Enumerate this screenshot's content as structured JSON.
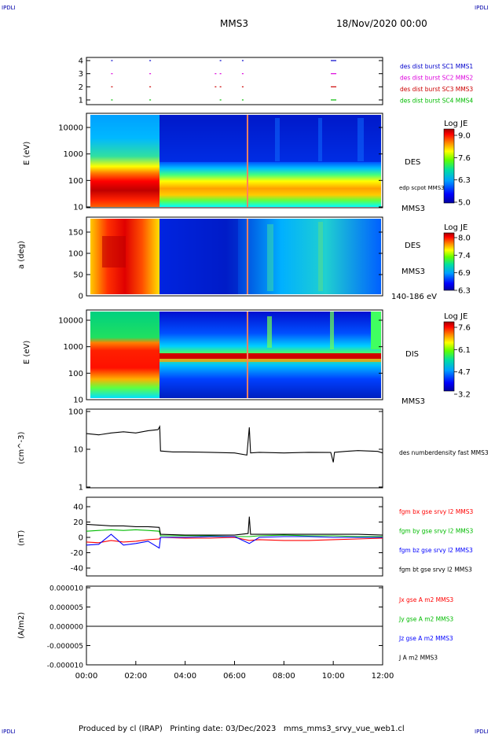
{
  "corner_labels": {
    "top_left": "IPDLI",
    "top_right": "IPDLI",
    "bottom_left": "IPDLI",
    "bottom_right": "IPDLI"
  },
  "header": {
    "spacecraft": "MMS3",
    "datetime": "18/Nov/2020 00:00"
  },
  "footer": {
    "text": "Produced by cl (IRAP)   Printing date: 03/Dec/2023   mms_mms3_srvy_vue_web1.cl"
  },
  "x_axis": {
    "ticks": [
      "00:00",
      "02:00",
      "04:00",
      "06:00",
      "08:00",
      "10:00",
      "12:00"
    ]
  },
  "chart_data": [
    {
      "type": "scatter",
      "panel": "burst-availability",
      "y_ticks": [
        "4",
        "3",
        "2",
        "1"
      ],
      "series": [
        {
          "name": "des dist burst SC1 MMS1",
          "color": "#0000cc",
          "level": 4,
          "marks_hours": [
            1.0,
            2.55,
            5.4,
            6.3,
            9.9
          ]
        },
        {
          "name": "des dist burst SC2 MMS2",
          "color": "#dd00dd",
          "level": 3,
          "marks_hours": [
            1.0,
            2.55,
            5.2,
            5.4,
            6.3,
            9.9
          ]
        },
        {
          "name": "des dist burst SC3 MMS3",
          "color": "#cc0000",
          "level": 2,
          "marks_hours": [
            1.0,
            2.55,
            5.2,
            5.4,
            6.3,
            9.9
          ]
        },
        {
          "name": "des dist burst SC4 MMS4",
          "color": "#00bb00",
          "level": 1,
          "marks_hours": [
            1.0,
            2.55,
            5.4,
            6.3,
            9.9
          ]
        }
      ]
    },
    {
      "type": "heatmap",
      "panel": "des-energy",
      "ylabel": "E (eV)",
      "y_ticks": [
        "10000",
        "1000",
        "100",
        "10"
      ],
      "label": "DES",
      "label2": "MMS3",
      "annotation": "edp scpot MMS3",
      "colorbar": {
        "title": "Log JE",
        "ticks": [
          "9.0",
          "7.6",
          "6.3",
          "5.0"
        ]
      }
    },
    {
      "type": "heatmap",
      "panel": "des-pitch",
      "ylabel": "a (deg)",
      "y_ticks": [
        "150",
        "100",
        "50",
        "0"
      ],
      "label": "DES",
      "label2": "MMS3",
      "annotation": "140-186 eV",
      "colorbar": {
        "title": "Log JE",
        "ticks": [
          "8.0",
          "7.4",
          "6.9",
          "6.3"
        ]
      }
    },
    {
      "type": "heatmap",
      "panel": "dis-energy",
      "ylabel": "E (eV)",
      "y_ticks": [
        "10000",
        "1000",
        "100",
        "10"
      ],
      "label": "DIS",
      "label2": "MMS3",
      "colorbar": {
        "title": "Log JE",
        "ticks": [
          "7.6",
          "6.1",
          "4.7",
          "3.2"
        ]
      }
    },
    {
      "type": "line",
      "panel": "density",
      "ylabel": "(cm^-3)",
      "y_ticks": [
        "100",
        "10",
        "1"
      ],
      "ylim": [
        1,
        100
      ],
      "log": true,
      "series": [
        {
          "name": "des numberdensity fast MMS3",
          "color": "#000000",
          "x": [
            0.0,
            0.5,
            1.0,
            1.5,
            2.0,
            2.5,
            2.9,
            2.97,
            3.0,
            3.5,
            4.0,
            5.0,
            6.0,
            6.5,
            6.6,
            6.65,
            7.0,
            8.0,
            9.0,
            9.9,
            10.0,
            10.05,
            10.5,
            11.0,
            11.8,
            12.0
          ],
          "y": [
            26,
            24,
            27,
            29,
            27,
            31,
            33,
            40,
            9,
            8.5,
            8.5,
            8.3,
            8.0,
            7.0,
            38,
            8.0,
            8.3,
            8.0,
            8.3,
            8.2,
            4.5,
            8.3,
            8.8,
            9.2,
            8.8,
            8.0
          ]
        }
      ]
    },
    {
      "type": "line",
      "panel": "magnetic-field",
      "ylabel": "(nT)",
      "y_ticks": [
        "40",
        "20",
        "0",
        "-20",
        "-40"
      ],
      "ylim": [
        -50,
        50
      ],
      "series": [
        {
          "name": "fgm bx gse srvy l2 MMS3",
          "color": "#ff0000",
          "x": [
            0.0,
            0.5,
            1.0,
            1.5,
            2.0,
            2.5,
            2.95,
            3.0,
            4.0,
            5.0,
            6.0,
            6.6,
            7.0,
            8.0,
            9.0,
            10.0,
            11.0,
            12.0
          ],
          "y": [
            -6,
            -7,
            -4,
            -6,
            -5,
            -3,
            -2,
            0,
            -1,
            -1,
            0,
            -4,
            -3,
            -4,
            -4,
            -3,
            -2,
            -1
          ]
        },
        {
          "name": "fgm by gse srvy l2 MMS3",
          "color": "#00bb00",
          "x": [
            0.0,
            0.5,
            1.0,
            1.5,
            2.0,
            2.5,
            2.95,
            3.0,
            4.0,
            5.0,
            6.0,
            6.6,
            7.0,
            8.0,
            9.0,
            10.0,
            11.0,
            12.0
          ],
          "y": [
            8,
            9,
            10,
            9,
            10,
            9,
            8,
            2,
            2,
            2,
            1,
            1,
            2,
            3,
            2,
            2,
            1,
            1
          ]
        },
        {
          "name": "fgm bz gse srvy l2 MMS3",
          "color": "#0000ff",
          "x": [
            0.0,
            0.5,
            1.0,
            1.5,
            2.0,
            2.5,
            2.95,
            3.0,
            4.0,
            5.0,
            6.0,
            6.6,
            7.0,
            8.0,
            9.0,
            10.0,
            11.0,
            12.0
          ],
          "y": [
            -10,
            -9,
            4,
            -10,
            -8,
            -5,
            -14,
            0,
            0,
            1,
            1,
            -8,
            0,
            1,
            1,
            0,
            0,
            0
          ]
        },
        {
          "name": "fgm bt gse srvy l2 MMS3",
          "color": "#000000",
          "x": [
            0.0,
            0.5,
            1.0,
            1.5,
            2.0,
            2.5,
            2.95,
            3.0,
            4.0,
            5.0,
            6.0,
            6.55,
            6.6,
            6.65,
            7.0,
            8.0,
            9.0,
            10.0,
            11.0,
            12.0
          ],
          "y": [
            17,
            16,
            15,
            15,
            14,
            14,
            13,
            4,
            3,
            3,
            3,
            5,
            27,
            4,
            4,
            4,
            4,
            4,
            4,
            3
          ]
        }
      ]
    },
    {
      "type": "line",
      "panel": "current-density",
      "ylabel": "(A/m2)",
      "y_ticks": [
        "0.000010",
        "0.000005",
        "0.000000",
        "-0.000005",
        "-0.000010"
      ],
      "ylim": [
        -1e-05,
        1e-05
      ],
      "series": [
        {
          "name": "Jx gse A m2 MMS3",
          "color": "#ff0000",
          "x": [
            0,
            12
          ],
          "y": [
            0,
            0
          ]
        },
        {
          "name": "Jy gse A m2 MMS3",
          "color": "#00bb00",
          "x": [
            0,
            12
          ],
          "y": [
            0,
            0
          ]
        },
        {
          "name": "Jz gse A m2 MMS3",
          "color": "#0000ff",
          "x": [
            0,
            12
          ],
          "y": [
            0,
            0
          ]
        },
        {
          "name": "J A m2 MMS3",
          "color": "#000000",
          "x": [
            0,
            12
          ],
          "y": [
            0,
            0
          ]
        }
      ]
    }
  ]
}
